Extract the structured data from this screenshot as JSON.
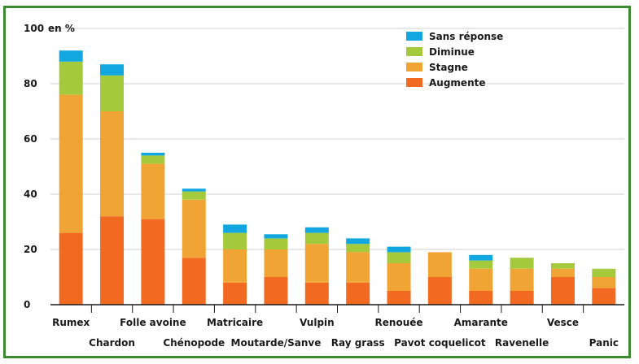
{
  "chart_data": {
    "type": "bar",
    "stacked": true,
    "y_unit_label": "en %",
    "ylim": [
      0,
      100
    ],
    "yticks": [
      0,
      20,
      40,
      60,
      80,
      100
    ],
    "grid": true,
    "legend_position": "top-right",
    "categories": [
      "Rumex",
      "Chardon",
      "Folle avoine",
      "Chénopode",
      "Matricaire",
      "Moutarde/Sanve",
      "Vulpin",
      "Ray grass",
      "Renouée",
      "Pavot coquelicot",
      "Amarante",
      "Ravenelle",
      "Vesce",
      "Panic"
    ],
    "series": [
      {
        "name": "Augmente",
        "color": "#f26a21",
        "values": [
          26,
          32,
          31,
          17,
          8,
          10,
          8,
          8,
          5,
          10,
          5,
          5,
          10,
          6
        ]
      },
      {
        "name": "Stagne",
        "color": "#f0a433",
        "values": [
          50,
          38,
          20,
          21,
          12,
          10,
          14,
          11,
          10,
          9,
          8,
          8,
          3,
          4
        ]
      },
      {
        "name": "Diminue",
        "color": "#a5c93d",
        "values": [
          12,
          13,
          3,
          3,
          6,
          4,
          4,
          3,
          4,
          0,
          3,
          4,
          2,
          3
        ]
      },
      {
        "name": "Sans réponse",
        "color": "#12a7e0",
        "values": [
          4,
          4,
          1,
          1,
          3,
          1.5,
          2,
          2,
          2,
          0,
          2,
          0,
          0,
          0
        ]
      }
    ]
  }
}
